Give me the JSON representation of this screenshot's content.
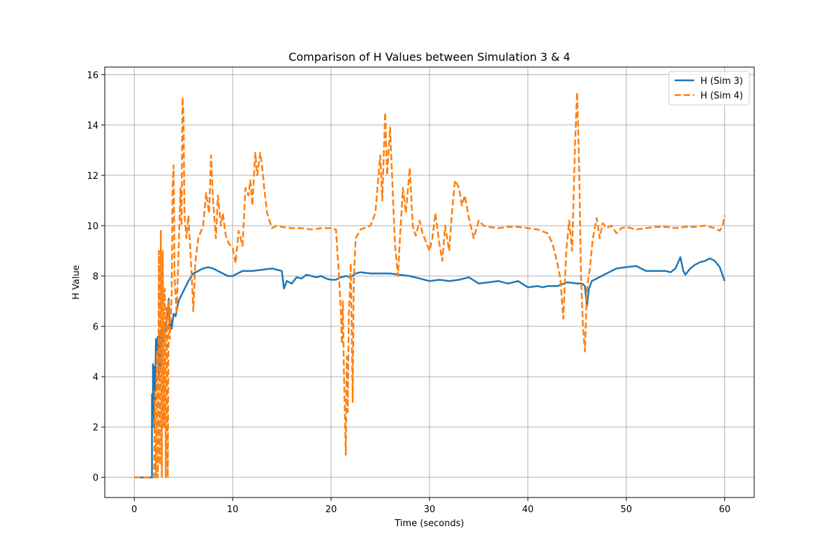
{
  "chart_data": {
    "type": "line",
    "title": "Comparison of H Values between Simulation 3 & 4",
    "xlabel": "Time (seconds)",
    "ylabel": "H Value",
    "xlim": [
      -3,
      63
    ],
    "ylim": [
      -0.8,
      16.3
    ],
    "xticks": [
      0,
      10,
      20,
      30,
      40,
      50,
      60
    ],
    "yticks": [
      0,
      2,
      4,
      6,
      8,
      10,
      12,
      14,
      16
    ],
    "grid": true,
    "legend_position": "top-right",
    "series": [
      {
        "name": "H (Sim 3)",
        "color": "#1f77b4",
        "style": "solid",
        "points": [
          [
            0,
            0
          ],
          [
            1.8,
            0
          ],
          [
            1.8,
            3.3
          ],
          [
            1.9,
            2.5
          ],
          [
            1.9,
            4.5
          ],
          [
            2.0,
            2.0
          ],
          [
            2.0,
            4.4
          ],
          [
            2.1,
            3.0
          ],
          [
            2.2,
            5.5
          ],
          [
            2.3,
            5.0
          ],
          [
            2.4,
            5.6
          ],
          [
            2.5,
            4.0
          ],
          [
            2.6,
            5.7
          ],
          [
            2.7,
            4.3
          ],
          [
            2.8,
            5.9
          ],
          [
            3.0,
            5.4
          ],
          [
            3.2,
            6.0
          ],
          [
            3.4,
            6.5
          ],
          [
            3.5,
            7.1
          ],
          [
            3.6,
            6.0
          ],
          [
            3.7,
            6.3
          ],
          [
            3.8,
            5.9
          ],
          [
            4.0,
            6.5
          ],
          [
            4.2,
            6.4
          ],
          [
            4.5,
            7.0
          ],
          [
            5.0,
            7.4
          ],
          [
            5.5,
            7.8
          ],
          [
            6.0,
            8.1
          ],
          [
            6.5,
            8.2
          ],
          [
            7.0,
            8.3
          ],
          [
            7.5,
            8.35
          ],
          [
            8.0,
            8.3
          ],
          [
            8.5,
            8.2
          ],
          [
            9.0,
            8.1
          ],
          [
            9.5,
            8.0
          ],
          [
            10.0,
            8.0
          ],
          [
            10.5,
            8.1
          ],
          [
            11.0,
            8.2
          ],
          [
            12.0,
            8.2
          ],
          [
            13.0,
            8.25
          ],
          [
            14.0,
            8.3
          ],
          [
            14.5,
            8.25
          ],
          [
            15.0,
            8.2
          ],
          [
            15.2,
            7.5
          ],
          [
            15.5,
            7.8
          ],
          [
            16.0,
            7.7
          ],
          [
            16.5,
            7.95
          ],
          [
            17.0,
            7.9
          ],
          [
            17.5,
            8.05
          ],
          [
            18.0,
            8.0
          ],
          [
            18.5,
            7.95
          ],
          [
            19.0,
            8.0
          ],
          [
            19.5,
            7.9
          ],
          [
            20.0,
            7.85
          ],
          [
            20.5,
            7.85
          ],
          [
            21.0,
            7.95
          ],
          [
            21.5,
            8.0
          ],
          [
            22.0,
            7.95
          ],
          [
            22.5,
            8.1
          ],
          [
            23.0,
            8.15
          ],
          [
            24.0,
            8.1
          ],
          [
            25.0,
            8.1
          ],
          [
            26.0,
            8.1
          ],
          [
            27.0,
            8.05
          ],
          [
            28.0,
            8.0
          ],
          [
            29.0,
            7.9
          ],
          [
            30.0,
            7.8
          ],
          [
            31.0,
            7.85
          ],
          [
            32.0,
            7.8
          ],
          [
            33.0,
            7.85
          ],
          [
            34.0,
            7.95
          ],
          [
            35.0,
            7.7
          ],
          [
            36.0,
            7.75
          ],
          [
            37.0,
            7.8
          ],
          [
            38.0,
            7.7
          ],
          [
            39.0,
            7.8
          ],
          [
            40.0,
            7.55
          ],
          [
            41.0,
            7.6
          ],
          [
            41.5,
            7.55
          ],
          [
            42.0,
            7.6
          ],
          [
            43.0,
            7.6
          ],
          [
            44.0,
            7.75
          ],
          [
            45.0,
            7.7
          ],
          [
            45.5,
            7.7
          ],
          [
            45.8,
            7.6
          ],
          [
            46.0,
            6.8
          ],
          [
            46.2,
            7.5
          ],
          [
            46.5,
            7.8
          ],
          [
            47.0,
            7.9
          ],
          [
            48.0,
            8.1
          ],
          [
            49.0,
            8.3
          ],
          [
            50.0,
            8.35
          ],
          [
            51.0,
            8.4
          ],
          [
            52.0,
            8.2
          ],
          [
            53.0,
            8.2
          ],
          [
            54.0,
            8.2
          ],
          [
            54.5,
            8.15
          ],
          [
            55.0,
            8.3
          ],
          [
            55.5,
            8.75
          ],
          [
            55.8,
            8.2
          ],
          [
            56.0,
            8.05
          ],
          [
            56.5,
            8.3
          ],
          [
            57.0,
            8.45
          ],
          [
            57.5,
            8.55
          ],
          [
            58.0,
            8.6
          ],
          [
            58.5,
            8.7
          ],
          [
            59.0,
            8.6
          ],
          [
            59.5,
            8.35
          ],
          [
            60.0,
            7.8
          ]
        ]
      },
      {
        "name": "H (Sim 4)",
        "color": "#ff7f0e",
        "style": "dashed",
        "points": [
          [
            0,
            0
          ],
          [
            2.0,
            0
          ],
          [
            2.1,
            3.5
          ],
          [
            2.2,
            0
          ],
          [
            2.3,
            5.0
          ],
          [
            2.4,
            0
          ],
          [
            2.5,
            9.0
          ],
          [
            2.6,
            0.5
          ],
          [
            2.7,
            9.8
          ],
          [
            2.8,
            0
          ],
          [
            2.9,
            9.0
          ],
          [
            3.0,
            2.0
          ],
          [
            3.1,
            7.5
          ],
          [
            3.2,
            0
          ],
          [
            3.3,
            6.8
          ],
          [
            3.4,
            0
          ],
          [
            3.5,
            7.0
          ],
          [
            3.6,
            5.5
          ],
          [
            3.8,
            7.2
          ],
          [
            3.9,
            11.5
          ],
          [
            4.0,
            12.4
          ],
          [
            4.1,
            8.0
          ],
          [
            4.3,
            6.5
          ],
          [
            4.5,
            9.0
          ],
          [
            4.7,
            11.5
          ],
          [
            4.8,
            10.0
          ],
          [
            4.9,
            15.1
          ],
          [
            5.0,
            14.5
          ],
          [
            5.1,
            10.5
          ],
          [
            5.3,
            9.5
          ],
          [
            5.5,
            10.4
          ],
          [
            5.7,
            9.0
          ],
          [
            5.9,
            7.5
          ],
          [
            6.0,
            6.6
          ],
          [
            6.2,
            8.5
          ],
          [
            6.5,
            9.5
          ],
          [
            7.0,
            10.0
          ],
          [
            7.3,
            11.3
          ],
          [
            7.6,
            10.5
          ],
          [
            7.8,
            12.8
          ],
          [
            8.0,
            11.0
          ],
          [
            8.3,
            9.5
          ],
          [
            8.5,
            11.2
          ],
          [
            8.8,
            10.0
          ],
          [
            9.0,
            10.5
          ],
          [
            9.3,
            9.6
          ],
          [
            9.6,
            9.3
          ],
          [
            10.0,
            9.1
          ],
          [
            10.3,
            8.5
          ],
          [
            10.6,
            9.8
          ],
          [
            11.0,
            9.2
          ],
          [
            11.3,
            11.5
          ],
          [
            11.6,
            11.2
          ],
          [
            11.8,
            11.8
          ],
          [
            12.0,
            10.8
          ],
          [
            12.3,
            12.9
          ],
          [
            12.5,
            12.0
          ],
          [
            12.8,
            12.9
          ],
          [
            13.0,
            12.3
          ],
          [
            13.2,
            11.5
          ],
          [
            13.5,
            10.5
          ],
          [
            14.0,
            9.9
          ],
          [
            14.5,
            10.0
          ],
          [
            15.0,
            9.95
          ],
          [
            16.0,
            9.9
          ],
          [
            17.0,
            9.9
          ],
          [
            18.0,
            9.85
          ],
          [
            19.0,
            9.9
          ],
          [
            20.0,
            9.9
          ],
          [
            20.5,
            9.85
          ],
          [
            20.8,
            8.0
          ],
          [
            21.0,
            6.5
          ],
          [
            21.1,
            5.3
          ],
          [
            21.2,
            7.0
          ],
          [
            21.3,
            4.3
          ],
          [
            21.5,
            0.9
          ],
          [
            21.6,
            4.8
          ],
          [
            21.7,
            2.6
          ],
          [
            21.8,
            6.5
          ],
          [
            21.9,
            7.3
          ],
          [
            22.0,
            8.5
          ],
          [
            22.2,
            3.0
          ],
          [
            22.3,
            7.8
          ],
          [
            22.5,
            9.5
          ],
          [
            23.0,
            9.85
          ],
          [
            24.0,
            10.0
          ],
          [
            24.5,
            10.5
          ],
          [
            25.0,
            12.8
          ],
          [
            25.2,
            11.0
          ],
          [
            25.5,
            14.5
          ],
          [
            25.7,
            12.0
          ],
          [
            26.0,
            13.9
          ],
          [
            26.3,
            11.0
          ],
          [
            26.5,
            9.2
          ],
          [
            26.8,
            8.0
          ],
          [
            27.0,
            9.5
          ],
          [
            27.3,
            11.5
          ],
          [
            27.6,
            10.5
          ],
          [
            28.0,
            12.3
          ],
          [
            28.3,
            10.0
          ],
          [
            28.6,
            9.6
          ],
          [
            29.0,
            10.2
          ],
          [
            29.3,
            9.7
          ],
          [
            29.6,
            9.4
          ],
          [
            30.0,
            9.0
          ],
          [
            30.3,
            9.5
          ],
          [
            30.6,
            10.5
          ],
          [
            31.0,
            9.3
          ],
          [
            31.3,
            8.6
          ],
          [
            31.6,
            10.0
          ],
          [
            32.0,
            9.0
          ],
          [
            32.3,
            10.6
          ],
          [
            32.6,
            11.8
          ],
          [
            33.0,
            11.5
          ],
          [
            33.3,
            10.8
          ],
          [
            33.6,
            11.2
          ],
          [
            34.0,
            10.3
          ],
          [
            34.5,
            9.5
          ],
          [
            35.0,
            10.2
          ],
          [
            35.5,
            10.0
          ],
          [
            36.0,
            9.95
          ],
          [
            37.0,
            9.9
          ],
          [
            38.0,
            9.95
          ],
          [
            39.0,
            9.95
          ],
          [
            40.0,
            9.9
          ],
          [
            41.0,
            9.85
          ],
          [
            42.0,
            9.7
          ],
          [
            42.5,
            9.3
          ],
          [
            43.0,
            8.5
          ],
          [
            43.3,
            7.9
          ],
          [
            43.6,
            6.3
          ],
          [
            43.9,
            9.0
          ],
          [
            44.2,
            10.2
          ],
          [
            44.5,
            9.0
          ],
          [
            44.8,
            13.3
          ],
          [
            45.0,
            15.3
          ],
          [
            45.2,
            12.5
          ],
          [
            45.4,
            8.0
          ],
          [
            45.6,
            6.0
          ],
          [
            45.8,
            5.0
          ],
          [
            46.0,
            7.5
          ],
          [
            46.3,
            8.3
          ],
          [
            46.6,
            9.5
          ],
          [
            47.0,
            10.3
          ],
          [
            47.3,
            9.5
          ],
          [
            47.6,
            10.1
          ],
          [
            48.0,
            9.9
          ],
          [
            48.5,
            10.0
          ],
          [
            49.0,
            9.7
          ],
          [
            49.5,
            9.9
          ],
          [
            50.0,
            9.95
          ],
          [
            51.0,
            9.85
          ],
          [
            52.0,
            9.9
          ],
          [
            53.0,
            9.95
          ],
          [
            54.0,
            9.95
          ],
          [
            55.0,
            9.9
          ],
          [
            56.0,
            9.95
          ],
          [
            57.0,
            9.95
          ],
          [
            58.0,
            10.0
          ],
          [
            59.0,
            9.9
          ],
          [
            59.5,
            9.8
          ],
          [
            59.8,
            10.0
          ],
          [
            60.0,
            10.4
          ]
        ]
      }
    ]
  }
}
